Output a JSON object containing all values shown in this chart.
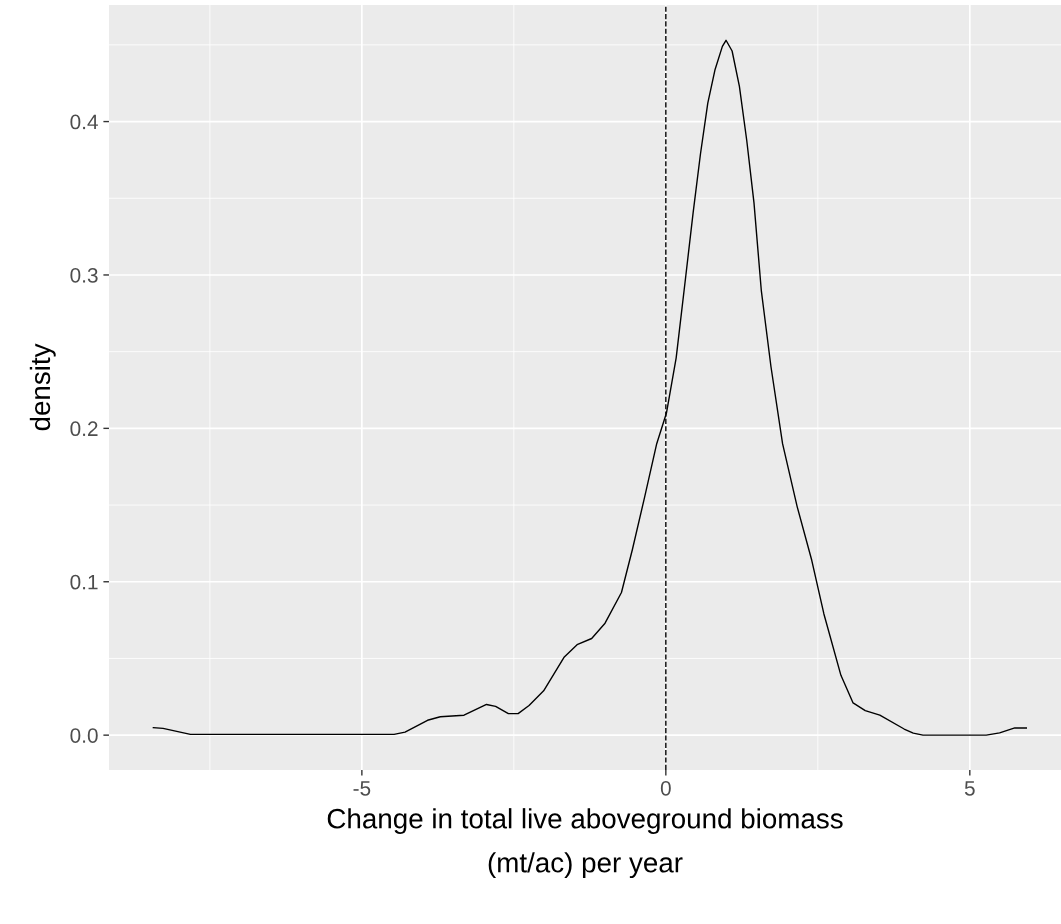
{
  "chart_data": {
    "type": "line",
    "xlabel": "Change in total live aboveground biomass\n(mt/ac) per year",
    "ylabel": "density",
    "x": [
      -8.43,
      -8.27,
      -7.82,
      -4.47,
      -4.29,
      -3.92,
      -3.71,
      -3.32,
      -2.95,
      -2.8,
      -2.59,
      -2.43,
      -2.25,
      -2.01,
      -1.67,
      -1.46,
      -1.22,
      -1.0,
      -0.73,
      -0.55,
      -0.35,
      -0.15,
      0.01,
      0.17,
      0.33,
      0.45,
      0.57,
      0.69,
      0.81,
      0.93,
      0.99,
      1.09,
      1.21,
      1.33,
      1.45,
      1.57,
      1.73,
      1.92,
      2.16,
      2.4,
      2.6,
      2.88,
      3.08,
      3.28,
      3.52,
      3.92,
      4.07,
      4.23,
      5.27,
      5.49,
      5.74,
      5.93
    ],
    "series": [
      {
        "color": "#000000",
        "values": [
          0.0049,
          0.0044,
          0.0005,
          0.0005,
          0.002,
          0.0097,
          0.012,
          0.013,
          0.02,
          0.0188,
          0.014,
          0.014,
          0.0193,
          0.0289,
          0.051,
          0.059,
          0.063,
          0.073,
          0.093,
          0.121,
          0.155,
          0.19,
          0.21,
          0.246,
          0.3,
          0.341,
          0.379,
          0.412,
          0.434,
          0.449,
          0.453,
          0.446,
          0.423,
          0.388,
          0.347,
          0.29,
          0.24,
          0.19,
          0.149,
          0.114,
          0.079,
          0.039,
          0.021,
          0.016,
          0.013,
          0.004,
          0.0013,
          0.0,
          0.0,
          0.0015,
          0.0047,
          0.0047
        ]
      }
    ],
    "xlim": [
      -9.16,
      6.5
    ],
    "ylim": [
      -0.0227,
      0.476
    ],
    "xticks": [
      -5,
      0,
      5
    ],
    "yticks": [
      {
        "value": 0,
        "label": "0.0"
      },
      {
        "value": 0.1,
        "label": "0.1"
      },
      {
        "value": 0.2,
        "label": "0.2"
      },
      {
        "value": 0.3,
        "label": "0.3"
      },
      {
        "value": 0.4,
        "label": "0.4"
      }
    ],
    "ref_lines": [
      {
        "axis": "x",
        "value": 0,
        "color": "#000000",
        "line_style": "dashed"
      }
    ],
    "grid": true,
    "marker": "none",
    "line_style": "solid"
  }
}
